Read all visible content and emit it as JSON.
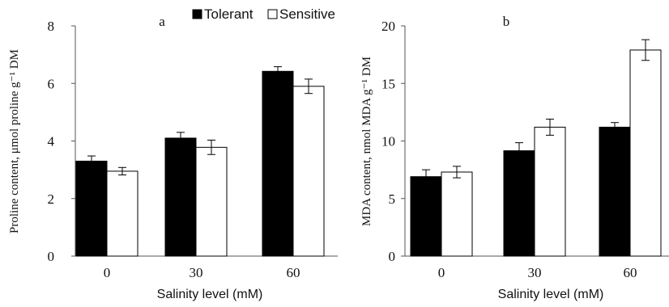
{
  "chart_data": [
    {
      "type": "bar",
      "panel_label": "a",
      "categories": [
        "0",
        "30",
        "60"
      ],
      "series": [
        {
          "name": "Tolerant",
          "values": [
            3.3,
            4.1,
            6.42
          ],
          "errors": [
            0.18,
            0.2,
            0.16
          ],
          "color": "#000000"
        },
        {
          "name": "Sensitive",
          "values": [
            2.95,
            3.78,
            5.9
          ],
          "errors": [
            0.13,
            0.25,
            0.25
          ],
          "color": "#ffffff"
        }
      ],
      "xlabel": "Salinity level (mM)",
      "ylabel": "Proline content, μmol proline g⁻¹ DM",
      "ylim": [
        0,
        8
      ],
      "yticks": [
        "0",
        "2",
        "4",
        "6",
        "8"
      ],
      "grid": false,
      "legend_placement": "top-right"
    },
    {
      "type": "bar",
      "panel_label": "b",
      "categories": [
        "0",
        "30",
        "60"
      ],
      "series": [
        {
          "name": "Tolerant",
          "values": [
            6.9,
            9.15,
            11.2
          ],
          "errors": [
            0.6,
            0.7,
            0.4
          ],
          "color": "#000000"
        },
        {
          "name": "Sensitive",
          "values": [
            7.3,
            11.2,
            17.9
          ],
          "errors": [
            0.5,
            0.7,
            0.9
          ],
          "color": "#ffffff"
        }
      ],
      "xlabel": "Salinity level (mM)",
      "ylabel": "MDA content, nmol MDA g⁻¹ DM",
      "ylim": [
        0,
        20
      ],
      "yticks": [
        "0",
        "5",
        "10",
        "15",
        "20"
      ],
      "grid": false
    }
  ]
}
